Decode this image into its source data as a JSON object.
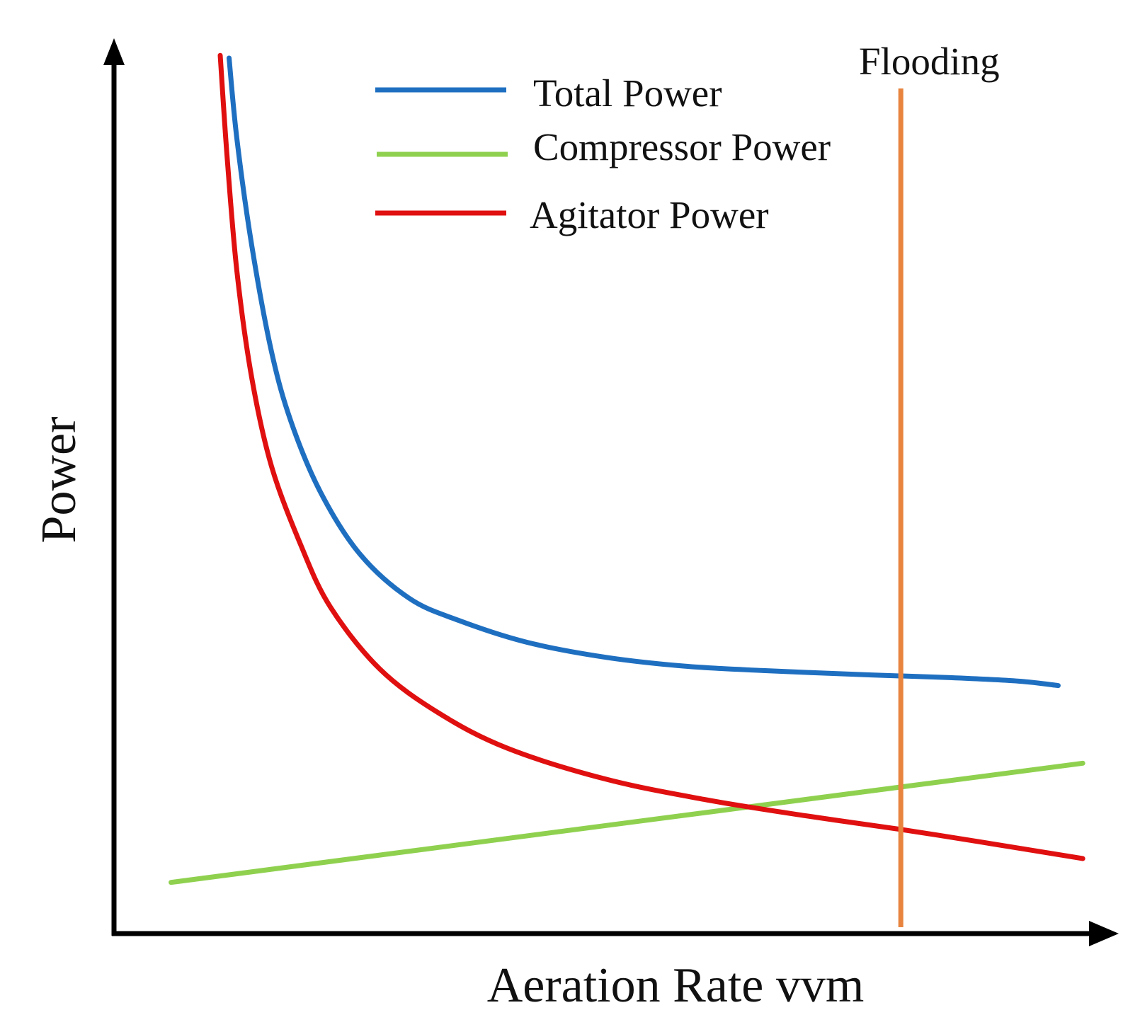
{
  "chart_data": {
    "type": "line",
    "title": "",
    "xlabel": "Aeration Rate vvm",
    "ylabel": "Power",
    "xlim": [
      0,
      1
    ],
    "ylim": [
      0,
      1
    ],
    "grid": false,
    "legend_placement": "top-center",
    "series": [
      {
        "name": "Total Power",
        "color": "#1f6fc1",
        "points": [
          [
            0.117,
            0.992
          ],
          [
            0.125,
            0.9
          ],
          [
            0.14,
            0.78
          ],
          [
            0.16,
            0.66
          ],
          [
            0.18,
            0.58
          ],
          [
            0.21,
            0.5
          ],
          [
            0.25,
            0.43
          ],
          [
            0.3,
            0.38
          ],
          [
            0.35,
            0.355
          ],
          [
            0.42,
            0.33
          ],
          [
            0.5,
            0.313
          ],
          [
            0.58,
            0.303
          ],
          [
            0.66,
            0.298
          ],
          [
            0.77,
            0.293
          ],
          [
            0.85,
            0.29
          ],
          [
            0.92,
            0.286
          ],
          [
            0.96,
            0.281
          ]
        ]
      },
      {
        "name": "Compressor Power",
        "color": "#8fd14f",
        "points": [
          [
            0.058,
            0.058
          ],
          [
            0.985,
            0.193
          ]
        ]
      },
      {
        "name": "Agitator Power",
        "color": "#e01010",
        "points": [
          [
            0.108,
            0.995
          ],
          [
            0.115,
            0.88
          ],
          [
            0.125,
            0.75
          ],
          [
            0.14,
            0.63
          ],
          [
            0.16,
            0.53
          ],
          [
            0.19,
            0.44
          ],
          [
            0.22,
            0.37
          ],
          [
            0.27,
            0.3
          ],
          [
            0.33,
            0.25
          ],
          [
            0.4,
            0.21
          ],
          [
            0.5,
            0.175
          ],
          [
            0.6,
            0.152
          ],
          [
            0.7,
            0.134
          ],
          [
            0.8,
            0.118
          ],
          [
            0.88,
            0.104
          ],
          [
            0.985,
            0.085
          ]
        ]
      }
    ],
    "annotations": [
      {
        "label": "Flooding",
        "x": 0.8,
        "color": "#e8843e"
      }
    ]
  }
}
